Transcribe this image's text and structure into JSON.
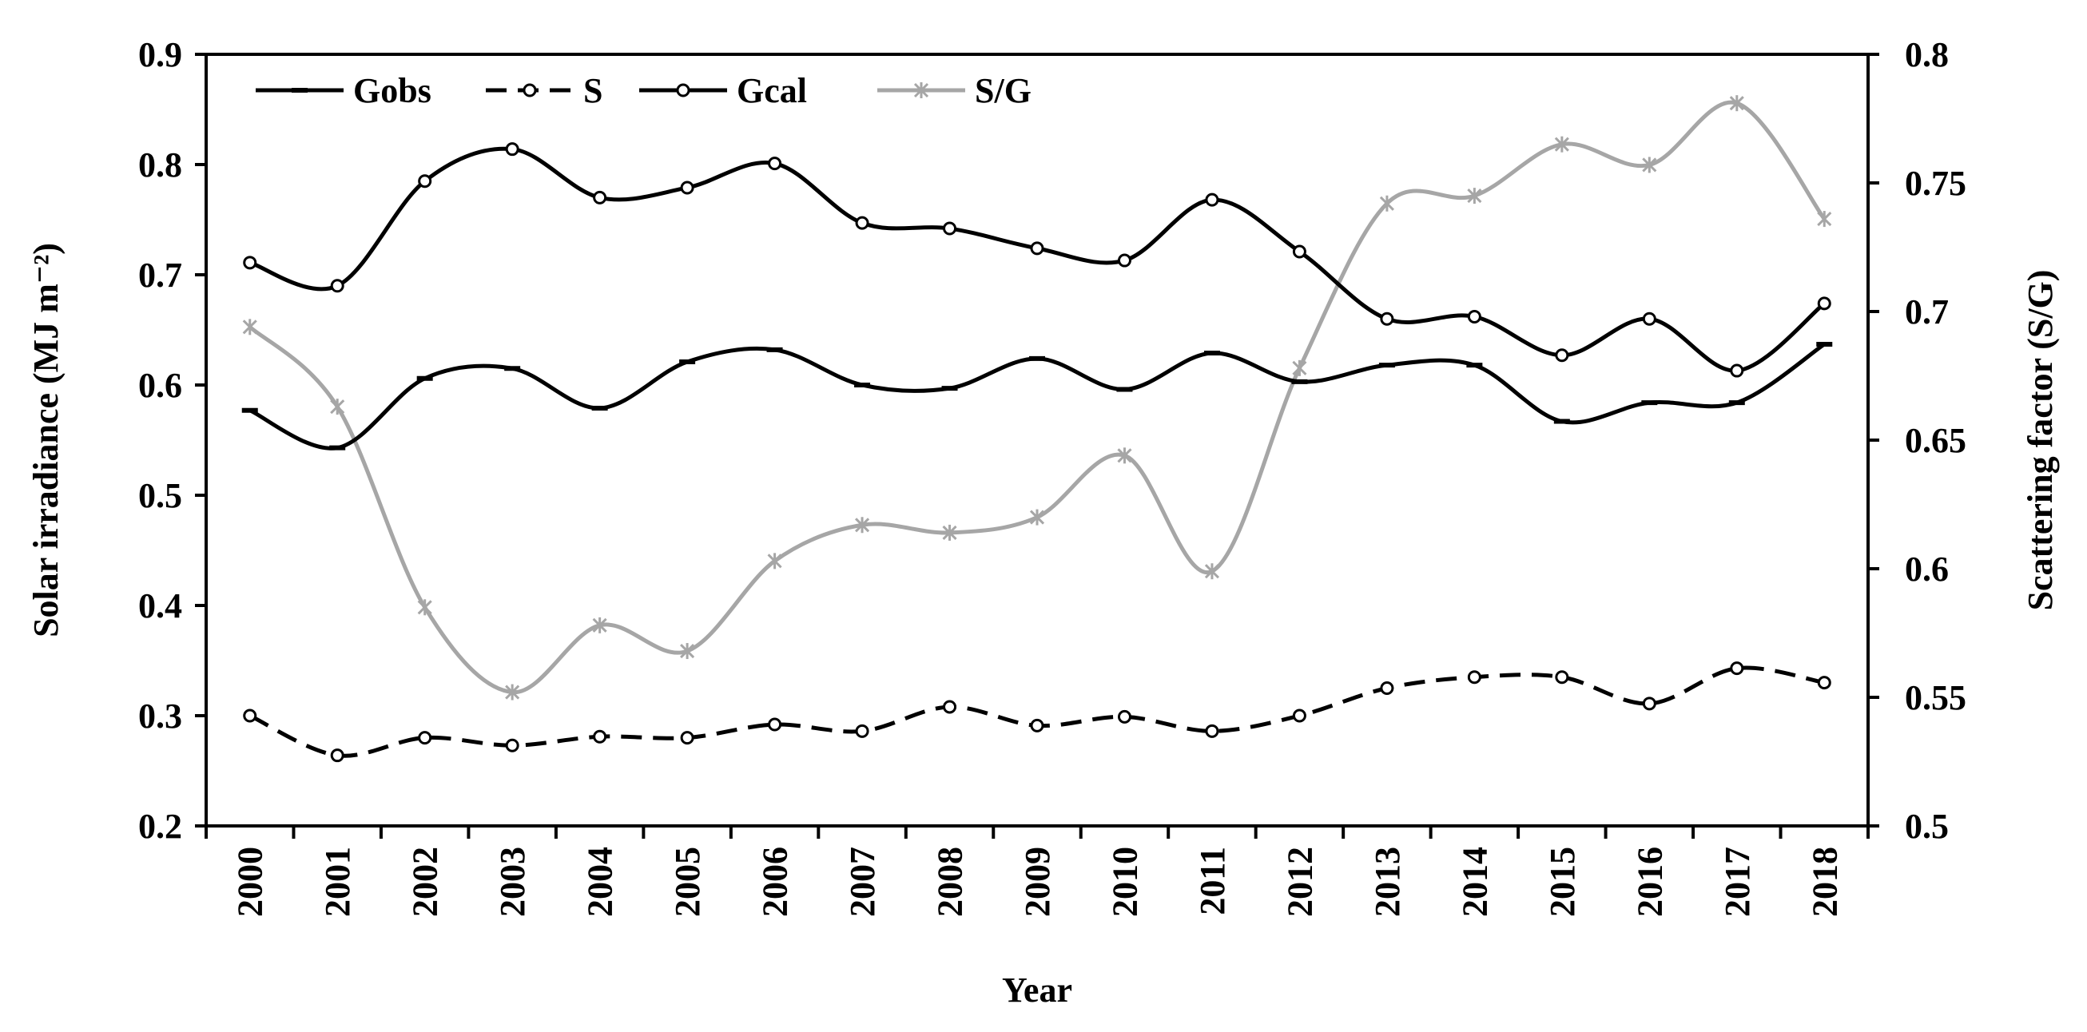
{
  "chart_data": {
    "type": "line",
    "title": "",
    "xlabel": "Year",
    "ylabel": "Solar irradiance (MJ m⁻²)",
    "y2label": "Scattering factor (S/G)",
    "categories": [
      "2000",
      "2001",
      "2002",
      "2003",
      "2004",
      "2005",
      "2006",
      "2007",
      "2008",
      "2009",
      "2010",
      "2011",
      "2012",
      "2013",
      "2014",
      "2015",
      "2016",
      "2017",
      "2018"
    ],
    "ylim": [
      0.2,
      0.9
    ],
    "yticks": [
      "0.2",
      "0.3",
      "0.4",
      "0.5",
      "0.6",
      "0.7",
      "0.8",
      "0.9"
    ],
    "y2lim": [
      0.5,
      0.8
    ],
    "y2ticks": [
      "0.5",
      "0.55",
      "0.6",
      "0.65",
      "0.7",
      "0.75",
      "0.8"
    ],
    "legend_position": "top-left",
    "series": [
      {
        "name": "Gobs",
        "axis": "left",
        "style": "solid",
        "marker": "dash",
        "color": "#000000",
        "values": [
          0.577,
          0.543,
          0.606,
          0.615,
          0.579,
          0.621,
          0.632,
          0.6,
          0.597,
          0.624,
          0.596,
          0.629,
          0.603,
          0.618,
          0.618,
          0.567,
          0.584,
          0.584,
          0.637
        ]
      },
      {
        "name": "S",
        "axis": "left",
        "style": "dashed",
        "marker": "circle",
        "color": "#000000",
        "values": [
          0.3,
          0.264,
          0.28,
          0.273,
          0.281,
          0.28,
          0.292,
          0.286,
          0.308,
          0.291,
          0.299,
          0.286,
          0.3,
          0.325,
          0.335,
          0.335,
          0.311,
          0.343,
          0.33
        ]
      },
      {
        "name": "Gcal",
        "axis": "left",
        "style": "solid",
        "marker": "circle",
        "color": "#000000",
        "values": [
          0.711,
          0.69,
          0.785,
          0.814,
          0.77,
          0.779,
          0.801,
          0.747,
          0.742,
          0.724,
          0.713,
          0.768,
          0.721,
          0.66,
          0.662,
          0.627,
          0.66,
          0.613,
          0.674
        ]
      },
      {
        "name": "S/G",
        "axis": "right",
        "style": "solid",
        "marker": "asterisk",
        "color": "#a6a6a6",
        "values": [
          0.694,
          0.663,
          0.585,
          0.552,
          0.578,
          0.568,
          0.603,
          0.617,
          0.614,
          0.62,
          0.644,
          0.599,
          0.678,
          0.742,
          0.745,
          0.765,
          0.757,
          0.781,
          0.736
        ]
      }
    ]
  }
}
